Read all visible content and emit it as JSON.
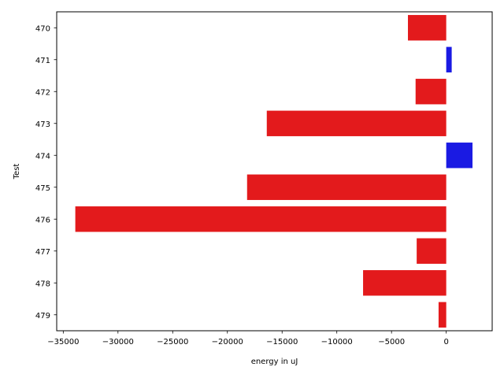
{
  "chart_data": {
    "type": "bar",
    "orientation": "horizontal",
    "categories": [
      "470",
      "471",
      "472",
      "473",
      "474",
      "475",
      "476",
      "477",
      "478",
      "479"
    ],
    "values": [
      -3500,
      500,
      -2800,
      -16400,
      2400,
      -18200,
      -33900,
      -2700,
      -7600,
      -700
    ],
    "colors": [
      "#e31a1c",
      "#1a1ae3",
      "#e31a1c",
      "#e31a1c",
      "#1a1ae3",
      "#e31a1c",
      "#e31a1c",
      "#e31a1c",
      "#e31a1c",
      "#e31a1c"
    ],
    "xlabel": "energy in uJ",
    "ylabel": "Test",
    "xlim": [
      -35600,
      4200
    ],
    "xticks": [
      -35000,
      -30000,
      -25000,
      -20000,
      -15000,
      -10000,
      -5000,
      0
    ],
    "xtick_labels": [
      "−35000",
      "−30000",
      "−25000",
      "−20000",
      "−15000",
      "−10000",
      "−5000",
      "0"
    ],
    "grid": false,
    "legend": "none"
  }
}
